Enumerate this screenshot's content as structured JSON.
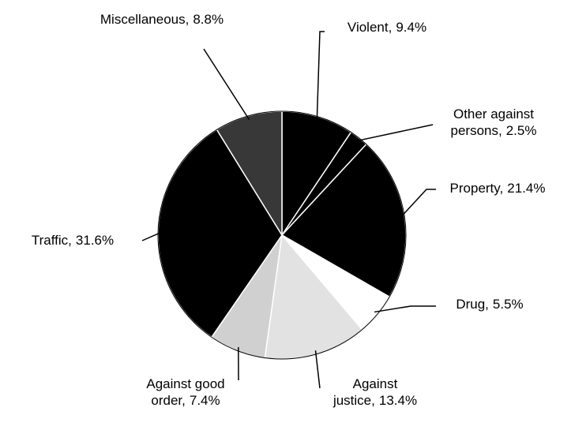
{
  "chart_data": {
    "type": "pie",
    "categories": [
      "Violent,",
      "Other against persons,",
      "Property,",
      "Drug,",
      "Against justice,",
      "Against good order,",
      "Traffic,",
      "Miscellaneous,"
    ],
    "values": [
      9.4,
      2.5,
      21.4,
      5.5,
      13.4,
      7.4,
      31.6,
      8.8
    ],
    "value_labels": [
      "9.4%",
      "2.5%",
      "21.4%",
      "5.5%",
      "13.4%",
      "7.4%",
      "31.6%",
      "8.8%"
    ],
    "colors": [
      "#000000",
      "#000000",
      "#000000",
      "#ffffff",
      "#e2e2e2",
      "#d0d0d0",
      "#000000",
      "#383838"
    ]
  }
}
